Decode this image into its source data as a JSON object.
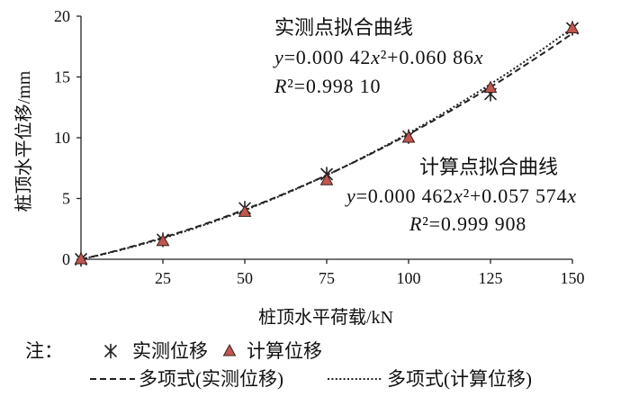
{
  "chart_data": {
    "type": "scatter",
    "title": "",
    "xlabel": "桩顶水平荷载/kN",
    "ylabel": "桩顶水平位移/mm",
    "xlim": [
      0,
      150
    ],
    "ylim": [
      0,
      20
    ],
    "xticks": [
      25,
      50,
      75,
      100,
      125,
      150
    ],
    "yticks": [
      0,
      5,
      10,
      15,
      20
    ],
    "grid": false,
    "legend_position": "bottom",
    "series": [
      {
        "name": "实测位移",
        "marker": "asterisk",
        "color": "#222222",
        "x": [
          0,
          25,
          50,
          75,
          100,
          125,
          150
        ],
        "y": [
          0,
          1.6,
          4.2,
          7.0,
          10.1,
          13.6,
          19.0
        ]
      },
      {
        "name": "计算位移",
        "marker": "triangle",
        "color": "#c0564f",
        "x": [
          0,
          25,
          50,
          75,
          100,
          125,
          150
        ],
        "y": [
          0,
          1.5,
          3.9,
          6.5,
          10.0,
          14.1,
          19.0
        ]
      }
    ],
    "trendlines": [
      {
        "name": "多项式(实测位移)",
        "style": "dashed",
        "color": "#222222",
        "coefficients": [
          0.00042,
          0.06086
        ]
      },
      {
        "name": "多项式(计算位移)",
        "style": "dotted",
        "color": "#222222",
        "coefficients": [
          0.000462,
          0.057574
        ]
      }
    ],
    "annotations": [
      {
        "title": "实测点拟合曲线",
        "equation": "y=0.000 42x²+0.060 86x",
        "r_squared": "R²=0.998 10"
      },
      {
        "title": "计算点拟合曲线",
        "equation": "y=0.000 462x²+0.057 574x",
        "r_squared": "R²=0.999 908"
      }
    ],
    "legend": {
      "note_label": "注："
    }
  }
}
